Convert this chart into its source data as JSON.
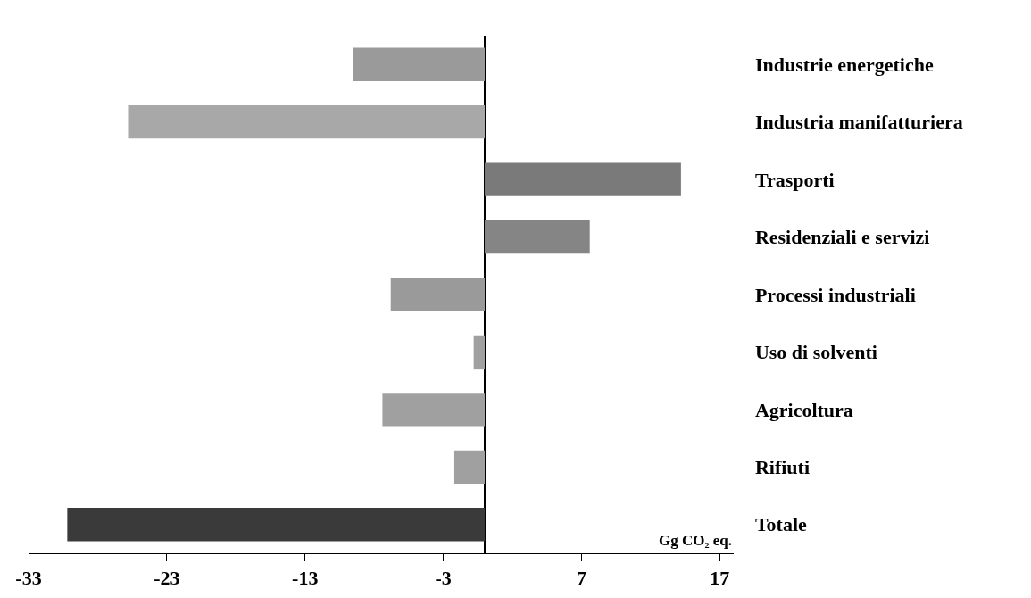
{
  "chart_data": {
    "type": "bar",
    "orientation": "horizontal",
    "categories": [
      "Industrie energetiche",
      "Industria manifatturiera",
      "Trasporti",
      "Residenziali e servizi",
      "Processi industriali",
      "Uso di solventi",
      "Agricoltura",
      "Rifiuti",
      "Totale"
    ],
    "values": [
      -9.5,
      -25.8,
      14.2,
      7.6,
      -6.8,
      -0.8,
      -7.4,
      -2.2,
      -30.2
    ],
    "colors": [
      "#9a9a9a",
      "#a8a8a8",
      "#7a7a7a",
      "#858585",
      "#9a9a9a",
      "#a0a0a0",
      "#a0a0a0",
      "#a0a0a0",
      "#3a3a3a"
    ],
    "xlim": [
      -33,
      18
    ],
    "xticks": [
      -33,
      -23,
      -13,
      -3,
      7,
      17
    ],
    "annotations": [
      "Gg CO₂ eq."
    ]
  }
}
